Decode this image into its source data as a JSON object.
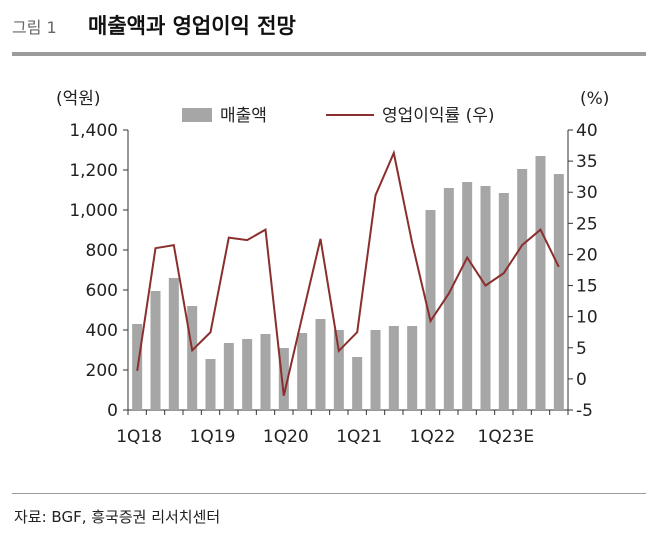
{
  "header": {
    "figure_label": "그림 1",
    "title": "매출액과 영업이익 전망"
  },
  "source": "자료: BGF, 흥국증권 리서치센터",
  "colors": {
    "bar": "#a6a6a6",
    "line": "#8b2e2e",
    "rule": "#9b9b9b"
  },
  "chart_data": {
    "type": "bar+line",
    "y_left": {
      "unit": "(억원)",
      "range": [
        0,
        1400
      ],
      "ticks": [
        0,
        200,
        400,
        600,
        800,
        1000,
        1200,
        1400
      ],
      "tick_labels": [
        "0",
        "200",
        "400",
        "600",
        "800",
        "1,000",
        "1,200",
        "1,400"
      ]
    },
    "y_right": {
      "unit": "(%)",
      "range": [
        -5,
        40
      ],
      "ticks": [
        -5,
        0,
        5,
        10,
        15,
        20,
        25,
        30,
        35,
        40
      ]
    },
    "x_tick_labels": [
      "1Q18",
      "1Q19",
      "1Q20",
      "1Q21",
      "1Q22",
      "1Q23E"
    ],
    "categories": [
      "1Q18",
      "2Q18",
      "3Q18",
      "4Q18",
      "1Q19",
      "2Q19",
      "3Q19",
      "4Q19",
      "1Q20",
      "2Q20",
      "3Q20",
      "4Q20",
      "1Q21",
      "2Q21",
      "3Q21",
      "4Q21",
      "1Q22",
      "2Q22",
      "3Q22",
      "4Q22",
      "1Q23E",
      "2Q23E",
      "3Q23E",
      "4Q23E"
    ],
    "series": [
      {
        "name": "매출액",
        "kind": "bar",
        "axis": "left",
        "values": [
          430,
          595,
          660,
          520,
          255,
          335,
          355,
          380,
          310,
          385,
          455,
          400,
          265,
          400,
          420,
          420,
          1000,
          1110,
          1140,
          1120,
          1085,
          1205,
          1270,
          1180
        ]
      },
      {
        "name": "영업이익률 (우)",
        "kind": "line",
        "axis": "right",
        "values": [
          1.3,
          21,
          21.5,
          4.6,
          7.5,
          22.7,
          22.3,
          24,
          -2.7,
          10,
          22.5,
          4.5,
          7.5,
          29.5,
          36.3,
          21.8,
          9.3,
          13.7,
          19.5,
          15,
          17,
          21.5,
          24,
          18
        ]
      }
    ],
    "legend_position": "top"
  }
}
